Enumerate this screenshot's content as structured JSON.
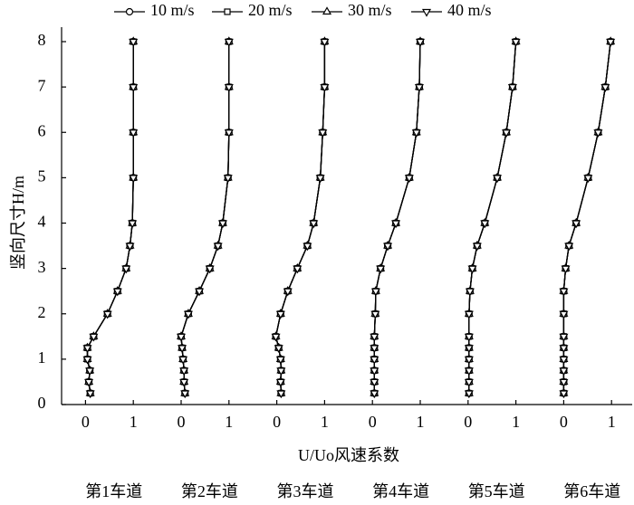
{
  "chart_data": {
    "type": "line",
    "y_label": "竖向尺寸H/m",
    "x_label": "U/Uo风速系数",
    "ylim": [
      0,
      8
    ],
    "yticks": [
      0,
      1,
      2,
      3,
      4,
      5,
      6,
      7,
      8
    ],
    "y": [
      0.25,
      0.5,
      0.75,
      1,
      1.25,
      1.5,
      2,
      2.5,
      3,
      3.5,
      4,
      5,
      6,
      7,
      8
    ],
    "legend": "top",
    "color": "#000000",
    "panels": [
      {
        "label": "第1车道",
        "xlim": [
          -0.5,
          1.5
        ],
        "xticks": [
          0,
          1
        ],
        "series": [
          {
            "name": "10 m/s",
            "marker": "circle",
            "values": [
              0.1,
              0.07,
              0.09,
              0.04,
              0.04,
              0.17,
              0.46,
              0.67,
              0.85,
              0.93,
              0.98,
              1,
              1,
              1,
              1
            ]
          },
          {
            "name": "20 m/s",
            "marker": "square",
            "values": [
              0.1,
              0.07,
              0.09,
              0.04,
              0.04,
              0.17,
              0.46,
              0.67,
              0.85,
              0.93,
              0.98,
              1,
              1,
              1,
              1
            ]
          },
          {
            "name": "30 m/s",
            "marker": "triangle-up",
            "values": [
              0.1,
              0.07,
              0.09,
              0.04,
              0.04,
              0.17,
              0.46,
              0.67,
              0.85,
              0.93,
              0.98,
              1,
              1,
              1,
              1
            ]
          },
          {
            "name": "40 m/s",
            "marker": "triangle-down",
            "values": [
              0.1,
              0.07,
              0.09,
              0.04,
              0.04,
              0.17,
              0.46,
              0.67,
              0.85,
              0.93,
              0.98,
              1,
              1,
              1,
              1
            ]
          }
        ]
      },
      {
        "label": "第2车道",
        "xlim": [
          -0.5,
          1.5
        ],
        "xticks": [
          0,
          1
        ],
        "series": [
          {
            "name": "10 m/s",
            "marker": "circle",
            "values": [
              0.08,
              0.06,
              0.06,
              0.04,
              0.02,
              0,
              0.15,
              0.38,
              0.6,
              0.77,
              0.87,
              0.98,
              1,
              1,
              1
            ]
          },
          {
            "name": "20 m/s",
            "marker": "square",
            "values": [
              0.08,
              0.06,
              0.06,
              0.04,
              0.02,
              0,
              0.15,
              0.38,
              0.6,
              0.77,
              0.87,
              0.98,
              1,
              1,
              1
            ]
          },
          {
            "name": "30 m/s",
            "marker": "triangle-up",
            "values": [
              0.08,
              0.06,
              0.06,
              0.04,
              0.02,
              0,
              0.15,
              0.38,
              0.6,
              0.77,
              0.87,
              0.98,
              1,
              1,
              1
            ]
          },
          {
            "name": "40 m/s",
            "marker": "triangle-down",
            "values": [
              0.08,
              0.06,
              0.06,
              0.04,
              0.02,
              0,
              0.15,
              0.38,
              0.6,
              0.77,
              0.87,
              0.98,
              1,
              1,
              1
            ]
          }
        ]
      },
      {
        "label": "第3车道",
        "xlim": [
          -0.5,
          1.5
        ],
        "xticks": [
          0,
          1
        ],
        "series": [
          {
            "name": "10 m/s",
            "marker": "circle",
            "values": [
              0.09,
              0.08,
              0.09,
              0.08,
              0.04,
              -0.02,
              0.08,
              0.23,
              0.43,
              0.64,
              0.77,
              0.91,
              0.96,
              1,
              1
            ]
          },
          {
            "name": "20 m/s",
            "marker": "square",
            "values": [
              0.09,
              0.08,
              0.09,
              0.08,
              0.04,
              -0.02,
              0.08,
              0.23,
              0.43,
              0.64,
              0.77,
              0.91,
              0.96,
              1,
              1
            ]
          },
          {
            "name": "30 m/s",
            "marker": "triangle-up",
            "values": [
              0.09,
              0.08,
              0.09,
              0.08,
              0.04,
              -0.02,
              0.08,
              0.23,
              0.43,
              0.64,
              0.77,
              0.91,
              0.96,
              1,
              1
            ]
          },
          {
            "name": "40 m/s",
            "marker": "triangle-down",
            "values": [
              0.09,
              0.08,
              0.09,
              0.08,
              0.04,
              -0.02,
              0.08,
              0.23,
              0.43,
              0.64,
              0.77,
              0.91,
              0.96,
              1,
              1
            ]
          }
        ]
      },
      {
        "label": "第4车道",
        "xlim": [
          -0.5,
          1.5
        ],
        "xticks": [
          0,
          1
        ],
        "series": [
          {
            "name": "10 m/s",
            "marker": "circle",
            "values": [
              0.04,
              0.04,
              0.04,
              0.04,
              0.04,
              0.04,
              0.06,
              0.07,
              0.17,
              0.32,
              0.49,
              0.77,
              0.92,
              0.98,
              1
            ]
          },
          {
            "name": "20 m/s",
            "marker": "square",
            "values": [
              0.04,
              0.04,
              0.04,
              0.04,
              0.04,
              0.04,
              0.06,
              0.07,
              0.17,
              0.32,
              0.49,
              0.77,
              0.92,
              0.98,
              1
            ]
          },
          {
            "name": "30 m/s",
            "marker": "triangle-up",
            "values": [
              0.04,
              0.04,
              0.04,
              0.04,
              0.04,
              0.04,
              0.06,
              0.07,
              0.17,
              0.32,
              0.49,
              0.77,
              0.92,
              0.98,
              1
            ]
          },
          {
            "name": "40 m/s",
            "marker": "triangle-down",
            "values": [
              0.04,
              0.04,
              0.04,
              0.04,
              0.04,
              0.04,
              0.06,
              0.07,
              0.17,
              0.32,
              0.49,
              0.77,
              0.92,
              0.98,
              1
            ]
          }
        ]
      },
      {
        "label": "第5车道",
        "xlim": [
          -0.5,
          1.5
        ],
        "xticks": [
          0,
          1
        ],
        "series": [
          {
            "name": "10 m/s",
            "marker": "circle",
            "values": [
              0.02,
              0.02,
              0.02,
              0.02,
              0.02,
              0.02,
              0.02,
              0.04,
              0.09,
              0.19,
              0.35,
              0.61,
              0.8,
              0.93,
              1
            ]
          },
          {
            "name": "20 m/s",
            "marker": "square",
            "values": [
              0.02,
              0.02,
              0.02,
              0.02,
              0.02,
              0.02,
              0.02,
              0.04,
              0.09,
              0.19,
              0.35,
              0.61,
              0.8,
              0.93,
              1
            ]
          },
          {
            "name": "30 m/s",
            "marker": "triangle-up",
            "values": [
              0.02,
              0.02,
              0.02,
              0.02,
              0.02,
              0.02,
              0.02,
              0.04,
              0.09,
              0.19,
              0.35,
              0.61,
              0.8,
              0.93,
              1
            ]
          },
          {
            "name": "40 m/s",
            "marker": "triangle-down",
            "values": [
              0.02,
              0.02,
              0.02,
              0.02,
              0.02,
              0.02,
              0.02,
              0.04,
              0.09,
              0.19,
              0.35,
              0.61,
              0.8,
              0.93,
              1
            ]
          }
        ]
      },
      {
        "label": "第6车道",
        "xlim": [
          -0.5,
          1.5
        ],
        "xticks": [
          0,
          1
        ],
        "series": [
          {
            "name": "10 m/s",
            "marker": "circle",
            "values": [
              0,
              0,
              0,
              0,
              0,
              0,
              0,
              0,
              0.04,
              0.11,
              0.26,
              0.51,
              0.72,
              0.87,
              0.98
            ]
          },
          {
            "name": "20 m/s",
            "marker": "square",
            "values": [
              0,
              0,
              0,
              0,
              0,
              0,
              0,
              0,
              0.04,
              0.11,
              0.26,
              0.51,
              0.72,
              0.87,
              0.98
            ]
          },
          {
            "name": "30 m/s",
            "marker": "triangle-up",
            "values": [
              0,
              0,
              0,
              0,
              0,
              0,
              0,
              0,
              0.04,
              0.11,
              0.26,
              0.51,
              0.72,
              0.87,
              0.98
            ]
          },
          {
            "name": "40 m/s",
            "marker": "triangle-down",
            "values": [
              0,
              0,
              0,
              0,
              0,
              0,
              0,
              0,
              0.04,
              0.11,
              0.26,
              0.51,
              0.72,
              0.87,
              0.98
            ]
          }
        ]
      }
    ]
  }
}
